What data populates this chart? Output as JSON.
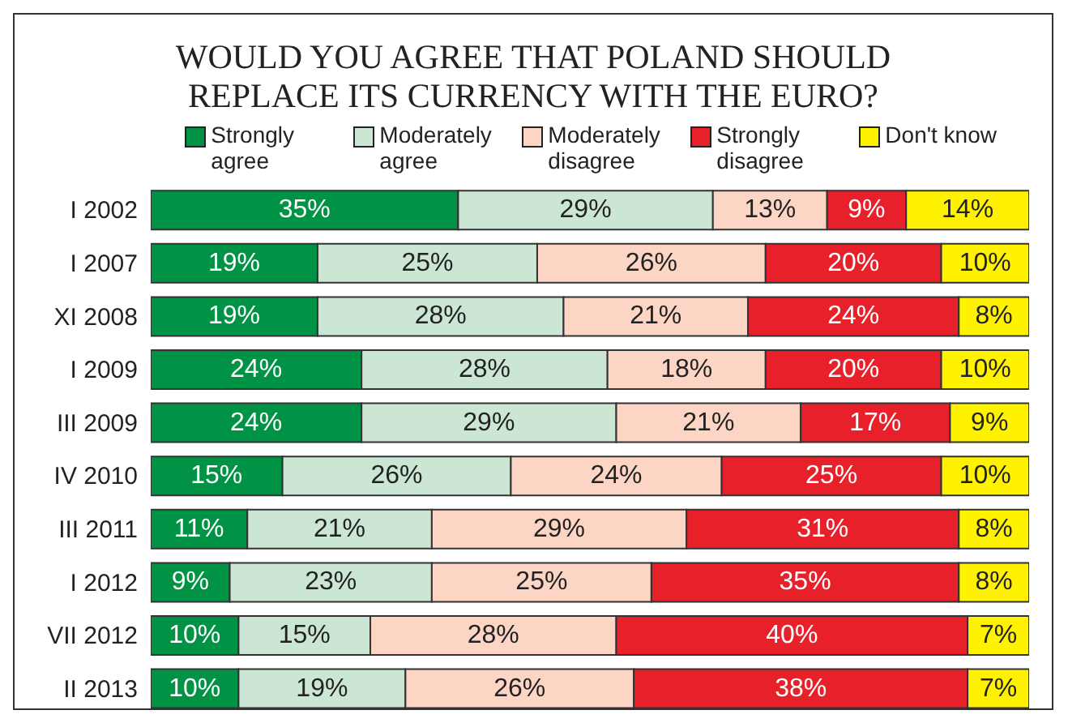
{
  "chart_data": {
    "type": "bar",
    "orientation": "horizontal",
    "stacked": true,
    "title": "WOULD YOU AGREE THAT POLAND SHOULD REPLACE ITS CURRENCY WITH THE EURO?",
    "categories": [
      "I 2002",
      "I 2007",
      "XI 2008",
      "I 2009",
      "III 2009",
      "IV 2010",
      "III 2011",
      "I 2012",
      "VII 2012",
      "II 2013"
    ],
    "xlim": [
      0,
      100
    ],
    "tick_labels": "y",
    "grid": false,
    "legend": "top",
    "series": [
      {
        "name": "Strongly agree",
        "color": "#009245",
        "values": [
          35,
          19,
          19,
          24,
          24,
          15,
          11,
          9,
          10,
          10
        ],
        "value_labels": [
          "35%",
          "19%",
          "19%",
          "24%",
          "24%",
          "15%",
          "11%",
          "9%",
          "10%",
          "10%"
        ]
      },
      {
        "name": "Moderately agree",
        "color": "#cce6d4",
        "values": [
          29,
          25,
          28,
          28,
          29,
          26,
          21,
          23,
          15,
          19
        ],
        "value_labels": [
          "29%",
          "25%",
          "28%",
          "28%",
          "29%",
          "26%",
          "21%",
          "23%",
          "15%",
          "19%"
        ]
      },
      {
        "name": "Moderately disagree",
        "color": "#fcd5c5",
        "values": [
          13,
          26,
          21,
          18,
          21,
          24,
          29,
          25,
          28,
          26
        ],
        "value_labels": [
          "13%",
          "26%",
          "21%",
          "18%",
          "21%",
          "24%",
          "29%",
          "25%",
          "28%",
          "26%"
        ]
      },
      {
        "name": "Strongly disagree",
        "color": "#e8202a",
        "values": [
          9,
          20,
          24,
          20,
          17,
          25,
          31,
          35,
          40,
          38
        ],
        "value_labels": [
          "9%",
          "20%",
          "24%",
          "20%",
          "17%",
          "25%",
          "31%",
          "35%",
          "40%",
          "38%"
        ]
      },
      {
        "name": "Don't know",
        "color": "#fff200",
        "values": [
          14,
          10,
          8,
          10,
          9,
          10,
          8,
          8,
          7,
          7
        ],
        "value_labels": [
          "14%",
          "10%",
          "8%",
          "10%",
          "9%",
          "10%",
          "8%",
          "8%",
          "7%",
          "7%"
        ]
      }
    ]
  }
}
